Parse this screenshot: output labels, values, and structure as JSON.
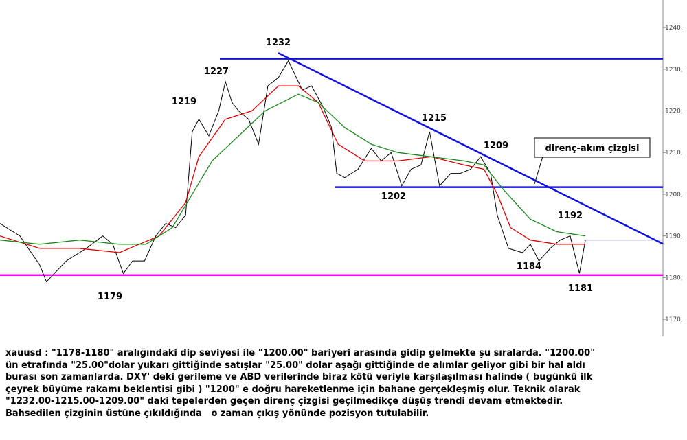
{
  "chart_data": {
    "type": "line",
    "xlim": [
      0,
      100
    ],
    "ylim": [
      1165.9,
      1246.6
    ],
    "yticks": [
      {
        "value": 1170,
        "label": "1170,"
      },
      {
        "value": 1180,
        "label": "1180,"
      },
      {
        "value": 1190,
        "label": "1190,"
      },
      {
        "value": 1200,
        "label": "1200,"
      },
      {
        "value": 1210,
        "label": "1210,"
      },
      {
        "value": 1220,
        "label": "1220,"
      },
      {
        "value": 1230,
        "label": "1230,"
      },
      {
        "value": 1240,
        "label": "1240,"
      }
    ],
    "series": [
      {
        "color": "#000000",
        "x": [
          0,
          3,
          6,
          7,
          10,
          13,
          15.5,
          17,
          18.6,
          20,
          21.8,
          23.5,
          25,
          26.5,
          28,
          29,
          30,
          31.5,
          33,
          34,
          35,
          36,
          37.5,
          39,
          40.4,
          42,
          43.5,
          45.6,
          47,
          48.7,
          50,
          50.8,
          52,
          54,
          56,
          57.5,
          59,
          60.6,
          62,
          63.5,
          64.8,
          66.3,
          68,
          69.4,
          71,
          72.5,
          74,
          75,
          76.7,
          78.8,
          80,
          81.3,
          83,
          84.5,
          86,
          87.4,
          88.3
        ],
        "values": [
          1193,
          1190,
          1183,
          1179,
          1184,
          1187,
          1190,
          1188,
          1181,
          1184,
          1184,
          1190,
          1193,
          1192,
          1195,
          1215,
          1218,
          1214,
          1220,
          1227,
          1222,
          1220,
          1218,
          1212,
          1226,
          1228,
          1232,
          1225,
          1226,
          1221,
          1216,
          1205,
          1204,
          1206,
          1211,
          1208,
          1210,
          1202,
          1206,
          1207,
          1215,
          1202,
          1205,
          1205,
          1206,
          1209,
          1205,
          1195,
          1187,
          1186,
          1188,
          1184,
          1187,
          1189,
          1190,
          1181,
          1189
        ]
      },
      {
        "color": "#e00000",
        "x": [
          0,
          6,
          12,
          18,
          24,
          28,
          30,
          34,
          38,
          42,
          45,
          48,
          51,
          55,
          60,
          65,
          70,
          73,
          75,
          77,
          80,
          84,
          88.3
        ],
        "values": [
          1190,
          1187,
          1187,
          1186,
          1190,
          1198,
          1209,
          1218,
          1220,
          1226,
          1226,
          1222,
          1212,
          1208,
          1208,
          1209,
          1207,
          1206,
          1200,
          1192,
          1189,
          1188,
          1188
        ]
      },
      {
        "color": "#1a8a1a",
        "x": [
          0,
          6,
          12,
          18,
          22,
          26,
          29,
          32,
          36,
          40,
          45,
          48,
          52,
          56,
          60,
          65,
          70,
          73,
          76,
          80,
          84,
          88.3
        ],
        "values": [
          1189,
          1188,
          1189,
          1188,
          1188,
          1192,
          1200,
          1208,
          1214,
          1220,
          1224,
          1222,
          1216,
          1212,
          1210,
          1209,
          1208,
          1207,
          1201,
          1194,
          1191,
          1190
        ]
      }
    ],
    "levels": {
      "resistance": 1232.5,
      "support": 1201.7,
      "bottom": 1180.6,
      "trend": [
        1233.9,
        1188.1
      ],
      "last": 1189
    },
    "annotations": [
      1232,
      1227,
      1219,
      1215,
      1209,
      1202,
      1192,
      1184,
      1179,
      1181
    ],
    "callout": "direnç-akım çizgisi"
  },
  "text": [
    "xauusd : \"1178-1180\" aralığındaki dip seviyesi ile \"1200.00\" bariyeri arasında gidip gelmekte şu sıralarda. \"1200.00\"",
    "ün etrafında \"25.00\"dolar yukarı gittiğinde satışlar \"25.00\" dolar aşağı gittiğinde de alımlar geliyor gibi bir hal aldı",
    "burası son zamanlarda. DXY' deki gerileme ve ABD verilerinde biraz kötü veriyle karşılaşılması halinde ( bugünkü ilk",
    "çeyrek büyüme rakamı beklentisi gibi ) \"1200\" e doğru hareketlenme için bahane gerçekleşmiş olur. Teknik olarak",
    "\"1232.00-1215.00-1209.00\" daki tepelerden geçen direnç çizgisi geçilmedikçe düşüş trendi devam etmektedir.",
    "Bahsedilen çizginin üstüne çıkıldığında   o zaman çıkış yönünde pozisyon tutulabilir."
  ]
}
